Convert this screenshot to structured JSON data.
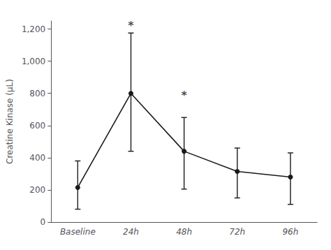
{
  "chart_data": {
    "type": "line",
    "categories": [
      "Baseline",
      "24h",
      "48h",
      "72h",
      "96h"
    ],
    "values": [
      215,
      800,
      440,
      315,
      280
    ],
    "err_low": [
      135,
      360,
      235,
      165,
      170
    ],
    "err_high": [
      165,
      375,
      210,
      145,
      150
    ],
    "color": "#1a1a1a",
    "marker": "circle",
    "ylabel": "Creatine Kinase (μL)",
    "ylim": [
      0,
      1250
    ],
    "yticks": [
      0,
      200,
      400,
      600,
      800,
      1000,
      1200
    ],
    "grid": false,
    "annotations": [
      {
        "text": "*",
        "x": "24h",
        "y": 1185
      },
      {
        "text": "*",
        "x": "48h",
        "y": 755
      }
    ]
  }
}
